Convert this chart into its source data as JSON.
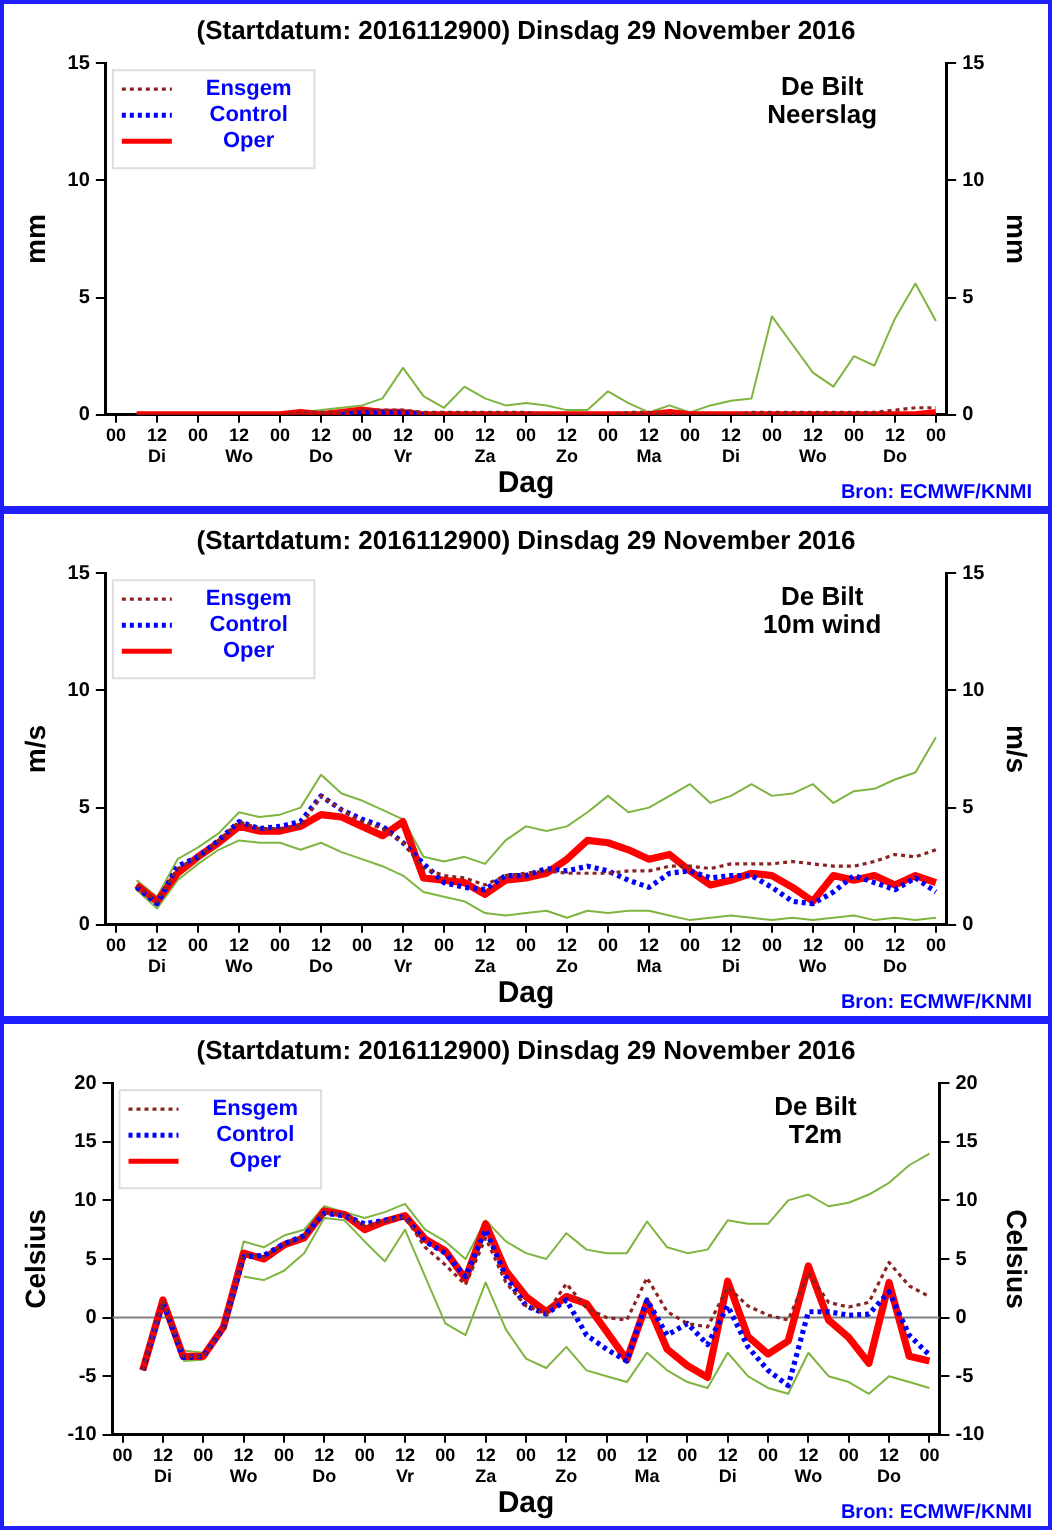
{
  "chart_data": [
    {
      "type": "line",
      "title": "(Startdatum: 2016112900) Dinsdag 29 November 2016",
      "xlabel": "Dag",
      "ylabel": "mm",
      "y2label": "mm",
      "annotations": [
        "De Bilt",
        "Neerslag",
        "Bron: ECMWF/KNMI"
      ],
      "legend": "top left",
      "marker": "none",
      "x": [
        "2016-11-29T06:00",
        "2016-11-29T12:00",
        "2016-11-29T18:00",
        "2016-11-30T00:00",
        "2016-11-30T06:00",
        "2016-11-30T12:00",
        "2016-11-30T18:00",
        "2016-12-01T00:00",
        "2016-12-01T06:00",
        "2016-12-01T12:00",
        "2016-12-01T18:00",
        "2016-12-02T00:00",
        "2016-12-02T06:00",
        "2016-12-02T12:00",
        "2016-12-02T18:00",
        "2016-12-03T00:00",
        "2016-12-03T06:00",
        "2016-12-03T12:00",
        "2016-12-03T18:00",
        "2016-12-04T00:00",
        "2016-12-04T06:00",
        "2016-12-04T12:00",
        "2016-12-04T18:00",
        "2016-12-05T00:00",
        "2016-12-05T06:00",
        "2016-12-05T12:00",
        "2016-12-05T18:00",
        "2016-12-06T00:00",
        "2016-12-06T06:00",
        "2016-12-06T12:00",
        "2016-12-06T18:00",
        "2016-12-07T00:00",
        "2016-12-07T06:00",
        "2016-12-07T12:00",
        "2016-12-07T18:00",
        "2016-12-08T00:00",
        "2016-12-08T06:00",
        "2016-12-08T12:00",
        "2016-12-08T18:00",
        "2016-12-09T00:00"
      ],
      "xlim": [
        "2016-11-28T21:00",
        "2016-12-09T03:00"
      ],
      "xticks": [
        {
          "value": "2016-11-29T00:00",
          "label": "00"
        },
        {
          "value": "2016-11-29T12:00",
          "label": "12\nDi"
        },
        {
          "value": "2016-11-30T00:00",
          "label": "00"
        },
        {
          "value": "2016-11-30T12:00",
          "label": "12\nWo"
        },
        {
          "value": "2016-12-01T00:00",
          "label": "00"
        },
        {
          "value": "2016-12-01T12:00",
          "label": "12\nDo"
        },
        {
          "value": "2016-12-02T00:00",
          "label": "00"
        },
        {
          "value": "2016-12-02T12:00",
          "label": "12\nVr"
        },
        {
          "value": "2016-12-03T00:00",
          "label": "00"
        },
        {
          "value": "2016-12-03T12:00",
          "label": "12\nZa"
        },
        {
          "value": "2016-12-04T00:00",
          "label": "00"
        },
        {
          "value": "2016-12-04T12:00",
          "label": "12\nZo"
        },
        {
          "value": "2016-12-05T00:00",
          "label": "00"
        },
        {
          "value": "2016-12-05T12:00",
          "label": "12\nMa"
        },
        {
          "value": "2016-12-06T00:00",
          "label": "00"
        },
        {
          "value": "2016-12-06T12:00",
          "label": "12\nDi"
        },
        {
          "value": "2016-12-07T00:00",
          "label": "00"
        },
        {
          "value": "2016-12-07T12:00",
          "label": "12\nWo"
        },
        {
          "value": "2016-12-08T00:00",
          "label": "00"
        },
        {
          "value": "2016-12-08T12:00",
          "label": "12\nDo"
        },
        {
          "value": "2016-12-09T00:00",
          "label": "00"
        }
      ],
      "ylim": [
        0,
        15
      ],
      "yticks": [
        0,
        5,
        10,
        15
      ],
      "y2lim": [
        0,
        15
      ],
      "y2ticks": [
        0,
        5,
        10,
        15
      ],
      "series": [
        {
          "color": "#80b440",
          "line_style": "solid",
          "values": [
            null,
            null,
            null,
            null,
            null,
            null,
            null,
            0.1,
            0.1,
            0.2,
            0.3,
            0.4,
            0.7,
            2.0,
            0.8,
            0.3,
            1.2,
            0.7,
            0.4,
            0.5,
            0.4,
            0.2,
            0.2,
            1.0,
            0.5,
            0.1,
            0.4,
            0.1,
            0.4,
            0.6,
            0.7,
            4.2,
            3.0,
            1.8,
            1.2,
            2.5,
            2.1,
            4.1,
            5.6,
            4.0
          ]
        },
        {
          "name": "Ensgem",
          "color": "#8b2323",
          "line_style": "dotted",
          "values": [
            0,
            0,
            0,
            0,
            0,
            0,
            0,
            0,
            0.1,
            0.1,
            0.1,
            0.2,
            0.2,
            0.2,
            0.1,
            0.1,
            0.1,
            0.1,
            0.1,
            0.1,
            0,
            0,
            0,
            0,
            0.1,
            0.1,
            0,
            0,
            0,
            0,
            0.1,
            0.1,
            0.1,
            0.1,
            0.1,
            0.1,
            0.1,
            0.2,
            0.3,
            0.3
          ]
        },
        {
          "name": "Control",
          "color": "#0000ff",
          "line_style": "dotted",
          "values": [
            null,
            null,
            null,
            null,
            null,
            null,
            null,
            null,
            null,
            null,
            0,
            0.1,
            0.1,
            0.1,
            0,
            null,
            null,
            null,
            null,
            null,
            null,
            null,
            null,
            null,
            null,
            null,
            null,
            null,
            null,
            null,
            null,
            null,
            null,
            null,
            null,
            null,
            null,
            null,
            null,
            null
          ]
        },
        {
          "name": "Oper",
          "color": "#ff0000",
          "line_style": "solid",
          "values": [
            0,
            0,
            0,
            0,
            0,
            0,
            0,
            0,
            0.1,
            0,
            0.1,
            0.2,
            0.1,
            0.1,
            0,
            0,
            0,
            0,
            0,
            0,
            0,
            0,
            0,
            0,
            0,
            0,
            0.1,
            0,
            0,
            0,
            0,
            0,
            0,
            0,
            0,
            0,
            0,
            0,
            0,
            0.1
          ]
        }
      ]
    },
    {
      "type": "line",
      "title": "(Startdatum: 2016112900) Dinsdag 29 November 2016",
      "xlabel": "Dag",
      "ylabel": "m/s",
      "y2label": "m/s",
      "annotations": [
        "De Bilt",
        "10m wind",
        "Bron: ECMWF/KNMI"
      ],
      "legend": "top left",
      "marker": "none",
      "x": [
        "2016-11-29T06:00",
        "2016-11-29T12:00",
        "2016-11-29T18:00",
        "2016-11-30T00:00",
        "2016-11-30T06:00",
        "2016-11-30T12:00",
        "2016-11-30T18:00",
        "2016-12-01T00:00",
        "2016-12-01T06:00",
        "2016-12-01T12:00",
        "2016-12-01T18:00",
        "2016-12-02T00:00",
        "2016-12-02T06:00",
        "2016-12-02T12:00",
        "2016-12-02T18:00",
        "2016-12-03T00:00",
        "2016-12-03T06:00",
        "2016-12-03T12:00",
        "2016-12-03T18:00",
        "2016-12-04T00:00",
        "2016-12-04T06:00",
        "2016-12-04T12:00",
        "2016-12-04T18:00",
        "2016-12-05T00:00",
        "2016-12-05T06:00",
        "2016-12-05T12:00",
        "2016-12-05T18:00",
        "2016-12-06T00:00",
        "2016-12-06T06:00",
        "2016-12-06T12:00",
        "2016-12-06T18:00",
        "2016-12-07T00:00",
        "2016-12-07T06:00",
        "2016-12-07T12:00",
        "2016-12-07T18:00",
        "2016-12-08T00:00",
        "2016-12-08T06:00",
        "2016-12-08T12:00",
        "2016-12-08T18:00",
        "2016-12-09T00:00"
      ],
      "xlim": [
        "2016-11-28T21:00",
        "2016-12-09T03:00"
      ],
      "xticks": [
        {
          "value": "2016-11-29T00:00",
          "label": "00"
        },
        {
          "value": "2016-11-29T12:00",
          "label": "12\nDi"
        },
        {
          "value": "2016-11-30T00:00",
          "label": "00"
        },
        {
          "value": "2016-11-30T12:00",
          "label": "12\nWo"
        },
        {
          "value": "2016-12-01T00:00",
          "label": "00"
        },
        {
          "value": "2016-12-01T12:00",
          "label": "12\nDo"
        },
        {
          "value": "2016-12-02T00:00",
          "label": "00"
        },
        {
          "value": "2016-12-02T12:00",
          "label": "12\nVr"
        },
        {
          "value": "2016-12-03T00:00",
          "label": "00"
        },
        {
          "value": "2016-12-03T12:00",
          "label": "12\nZa"
        },
        {
          "value": "2016-12-04T00:00",
          "label": "00"
        },
        {
          "value": "2016-12-04T12:00",
          "label": "12\nZo"
        },
        {
          "value": "2016-12-05T00:00",
          "label": "00"
        },
        {
          "value": "2016-12-05T12:00",
          "label": "12\nMa"
        },
        {
          "value": "2016-12-06T00:00",
          "label": "00"
        },
        {
          "value": "2016-12-06T12:00",
          "label": "12\nDi"
        },
        {
          "value": "2016-12-07T00:00",
          "label": "00"
        },
        {
          "value": "2016-12-07T12:00",
          "label": "12\nWo"
        },
        {
          "value": "2016-12-08T00:00",
          "label": "00"
        },
        {
          "value": "2016-12-08T12:00",
          "label": "12\nDo"
        },
        {
          "value": "2016-12-09T00:00",
          "label": "00"
        }
      ],
      "ylim": [
        0,
        15
      ],
      "yticks": [
        0,
        5,
        10,
        15
      ],
      "y2lim": [
        0,
        15
      ],
      "y2ticks": [
        0,
        5,
        10,
        15
      ],
      "series": [
        {
          "color": "#80b440",
          "line_style": "solid",
          "values": [
            1.9,
            1.2,
            2.8,
            3.3,
            3.9,
            4.8,
            4.6,
            4.7,
            5.0,
            6.4,
            5.6,
            5.3,
            4.9,
            4.5,
            2.9,
            2.7,
            2.9,
            2.6,
            3.6,
            4.2,
            4.0,
            4.2,
            4.8,
            5.5,
            4.8,
            5.0,
            5.5,
            6.0,
            5.2,
            5.5,
            6.0,
            5.5,
            5.6,
            6.0,
            5.2,
            5.7,
            5.8,
            6.2,
            6.5,
            8.0
          ]
        },
        {
          "color": "#80b440",
          "line_style": "solid",
          "values": [
            1.5,
            0.7,
            1.9,
            2.6,
            3.2,
            3.6,
            3.5,
            3.5,
            3.2,
            3.5,
            3.1,
            2.8,
            2.5,
            2.1,
            1.4,
            1.2,
            1.0,
            0.5,
            0.4,
            0.5,
            0.6,
            0.3,
            0.6,
            0.5,
            0.6,
            0.6,
            0.4,
            0.2,
            0.3,
            0.4,
            0.3,
            0.2,
            0.3,
            0.2,
            0.3,
            0.4,
            0.2,
            0.3,
            0.2,
            0.3
          ]
        },
        {
          "name": "Ensgem",
          "color": "#8b2323",
          "line_style": "dotted",
          "values": [
            1.7,
            1.0,
            2.4,
            2.9,
            3.6,
            4.4,
            4.1,
            4.1,
            4.2,
            5.5,
            4.9,
            4.4,
            4.1,
            3.5,
            2.4,
            2.1,
            2.0,
            1.7,
            2.1,
            2.2,
            2.3,
            2.2,
            2.2,
            2.2,
            2.3,
            2.3,
            2.5,
            2.5,
            2.4,
            2.6,
            2.6,
            2.6,
            2.7,
            2.6,
            2.5,
            2.5,
            2.7,
            3.0,
            2.9,
            3.2
          ]
        },
        {
          "name": "Control",
          "color": "#0000ff",
          "line_style": "dotted",
          "values": [
            1.6,
            0.9,
            2.5,
            2.9,
            3.6,
            4.4,
            4.1,
            4.2,
            4.4,
            5.5,
            4.9,
            4.5,
            4.2,
            3.5,
            2.6,
            1.8,
            1.6,
            1.5,
            2.1,
            2.1,
            2.4,
            2.3,
            2.5,
            2.3,
            1.9,
            1.6,
            2.2,
            2.3,
            2.0,
            2.1,
            2.1,
            1.6,
            1.0,
            0.9,
            1.4,
            2.1,
            1.8,
            1.5,
            2.0,
            1.4
          ]
        },
        {
          "name": "Oper",
          "color": "#ff0000",
          "line_style": "solid",
          "values": [
            1.7,
            1.0,
            2.2,
            2.9,
            3.5,
            4.2,
            4.0,
            4.0,
            4.2,
            4.7,
            4.6,
            4.2,
            3.8,
            4.4,
            2.0,
            1.9,
            1.8,
            1.3,
            1.9,
            2.0,
            2.2,
            2.8,
            3.6,
            3.5,
            3.2,
            2.8,
            3.0,
            2.3,
            1.7,
            1.9,
            2.2,
            2.1,
            1.6,
            1.0,
            2.1,
            1.9,
            2.1,
            1.7,
            2.1,
            1.8
          ]
        }
      ]
    },
    {
      "type": "line",
      "title": "(Startdatum: 2016112900) Dinsdag 29 November 2016",
      "xlabel": "Dag",
      "ylabel": "Celsius",
      "y2label": "Celsius",
      "annotations": [
        "De Bilt",
        "T2m",
        "Bron: ECMWF/KNMI"
      ],
      "legend": "top left",
      "marker": "none",
      "x": [
        "2016-11-29T06:00",
        "2016-11-29T12:00",
        "2016-11-29T18:00",
        "2016-11-30T00:00",
        "2016-11-30T06:00",
        "2016-11-30T12:00",
        "2016-11-30T18:00",
        "2016-12-01T00:00",
        "2016-12-01T06:00",
        "2016-12-01T12:00",
        "2016-12-01T18:00",
        "2016-12-02T00:00",
        "2016-12-02T06:00",
        "2016-12-02T12:00",
        "2016-12-02T18:00",
        "2016-12-03T00:00",
        "2016-12-03T06:00",
        "2016-12-03T12:00",
        "2016-12-03T18:00",
        "2016-12-04T00:00",
        "2016-12-04T06:00",
        "2016-12-04T12:00",
        "2016-12-04T18:00",
        "2016-12-05T00:00",
        "2016-12-05T06:00",
        "2016-12-05T12:00",
        "2016-12-05T18:00",
        "2016-12-06T00:00",
        "2016-12-06T06:00",
        "2016-12-06T12:00",
        "2016-12-06T18:00",
        "2016-12-07T00:00",
        "2016-12-07T06:00",
        "2016-12-07T12:00",
        "2016-12-07T18:00",
        "2016-12-08T00:00",
        "2016-12-08T06:00",
        "2016-12-08T12:00",
        "2016-12-08T18:00",
        "2016-12-09T00:00"
      ],
      "xlim": [
        "2016-11-28T21:00",
        "2016-12-09T03:00"
      ],
      "xticks": [
        {
          "value": "2016-11-29T00:00",
          "label": "00"
        },
        {
          "value": "2016-11-29T12:00",
          "label": "12\nDi"
        },
        {
          "value": "2016-11-30T00:00",
          "label": "00"
        },
        {
          "value": "2016-11-30T12:00",
          "label": "12\nWo"
        },
        {
          "value": "2016-12-01T00:00",
          "label": "00"
        },
        {
          "value": "2016-12-01T12:00",
          "label": "12\nDo"
        },
        {
          "value": "2016-12-02T00:00",
          "label": "00"
        },
        {
          "value": "2016-12-02T12:00",
          "label": "12\nVr"
        },
        {
          "value": "2016-12-03T00:00",
          "label": "00"
        },
        {
          "value": "2016-12-03T12:00",
          "label": "12\nZa"
        },
        {
          "value": "2016-12-04T00:00",
          "label": "00"
        },
        {
          "value": "2016-12-04T12:00",
          "label": "12\nZo"
        },
        {
          "value": "2016-12-05T00:00",
          "label": "00"
        },
        {
          "value": "2016-12-05T12:00",
          "label": "12\nMa"
        },
        {
          "value": "2016-12-06T00:00",
          "label": "00"
        },
        {
          "value": "2016-12-06T12:00",
          "label": "12\nDi"
        },
        {
          "value": "2016-12-07T00:00",
          "label": "00"
        },
        {
          "value": "2016-12-07T12:00",
          "label": "12\nWo"
        },
        {
          "value": "2016-12-08T00:00",
          "label": "00"
        },
        {
          "value": "2016-12-08T12:00",
          "label": "12\nDo"
        },
        {
          "value": "2016-12-09T00:00",
          "label": "00"
        }
      ],
      "ylim": [
        -10,
        20
      ],
      "yticks": [
        -10,
        -5,
        0,
        5,
        10,
        15,
        20
      ],
      "y2lim": [
        -10,
        20
      ],
      "y2ticks": [
        -10,
        -5,
        0,
        5,
        10,
        15,
        20
      ],
      "ref_lines": [
        {
          "axis": "y",
          "value": 0,
          "color": "#808080"
        }
      ],
      "series": [
        {
          "color": "#80b440",
          "line_style": "solid",
          "values": [
            null,
            null,
            -2.8,
            -3.0,
            -0.5,
            6.5,
            6.0,
            7.0,
            7.5,
            9.5,
            9.0,
            8.5,
            9.0,
            9.7,
            7.5,
            6.5,
            5.0,
            8.3,
            6.5,
            5.5,
            5.0,
            7.2,
            5.8,
            5.5,
            5.5,
            8.2,
            6.0,
            5.5,
            5.8,
            8.3,
            8.0,
            8.0,
            10.0,
            10.5,
            9.5,
            9.8,
            10.5,
            11.5,
            13.0,
            14.0
          ]
        },
        {
          "color": "#80b440",
          "line_style": "solid",
          "values": [
            null,
            null,
            -3.7,
            -3.6,
            null,
            3.5,
            3.2,
            4.0,
            5.5,
            8.5,
            8.3,
            6.5,
            4.8,
            7.5,
            3.5,
            -0.5,
            -1.5,
            3.0,
            -1.0,
            -3.5,
            -4.3,
            -2.5,
            -4.5,
            -5.0,
            -5.5,
            -3.0,
            -4.5,
            -5.5,
            -6.0,
            -3.0,
            -5.0,
            -6.0,
            -6.5,
            -3.0,
            -5.0,
            -5.5,
            -6.5,
            -5.0,
            -5.5,
            -6.0
          ]
        },
        {
          "name": "Ensgem",
          "color": "#8b2323",
          "line_style": "dotted",
          "values": [
            -4.5,
            1.4,
            -3.3,
            -3.3,
            -0.9,
            5.4,
            5.2,
            6.2,
            6.9,
            9.0,
            8.8,
            7.8,
            8.2,
            8.6,
            6.0,
            4.5,
            2.8,
            6.8,
            3.0,
            1.0,
            0.3,
            2.9,
            0.8,
            0.0,
            -0.2,
            3.4,
            0.5,
            -0.5,
            -0.8,
            2.6,
            1.0,
            0.2,
            -0.2,
            3.8,
            1.3,
            0.9,
            1.3,
            4.7,
            2.7,
            1.8
          ]
        },
        {
          "name": "Control",
          "color": "#0000ff",
          "line_style": "dotted",
          "values": [
            -4.5,
            1.3,
            -3.4,
            -3.3,
            -0.9,
            5.2,
            5.3,
            6.3,
            7.0,
            8.9,
            8.7,
            8.0,
            8.3,
            8.6,
            6.5,
            5.5,
            3.5,
            7.5,
            3.5,
            1.0,
            0.3,
            1.5,
            -1.5,
            -2.7,
            -3.7,
            1.5,
            -1.5,
            -0.5,
            -2.3,
            1.0,
            -2.5,
            -4.5,
            -5.8,
            0.5,
            0.5,
            0.2,
            0.3,
            2.2,
            -1.5,
            -3.2
          ]
        },
        {
          "name": "Oper",
          "color": "#ff0000",
          "line_style": "solid",
          "values": [
            -4.5,
            1.5,
            -3.3,
            -3.3,
            -0.8,
            5.5,
            5.0,
            6.2,
            6.8,
            9.1,
            8.8,
            7.5,
            8.2,
            8.7,
            6.7,
            5.7,
            3.3,
            8.0,
            4.0,
            1.8,
            0.5,
            1.8,
            1.2,
            -1.2,
            -3.6,
            1.3,
            -2.7,
            -4.1,
            -5.1,
            3.1,
            -1.6,
            -3.1,
            -2.0,
            4.4,
            -0.2,
            -1.7,
            -3.9,
            3.0,
            -3.3,
            -3.7
          ]
        }
      ]
    }
  ]
}
